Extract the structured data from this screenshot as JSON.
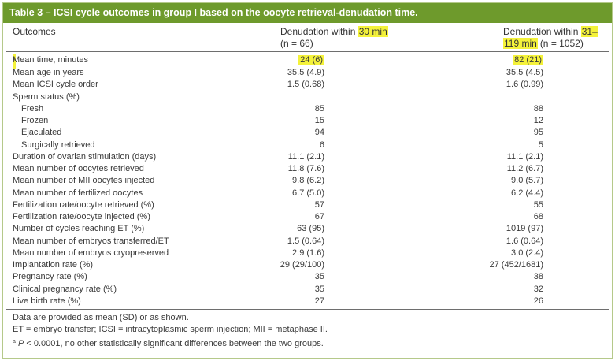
{
  "title": "Table 3 – ICSI cycle outcomes in group I based on the oocyte retrieval-denudation time.",
  "header": {
    "col0": "Outcomes",
    "col1_line1_prefix": "Denudation within ",
    "col1_line1_hl": "30 min",
    "col1_line2": "(n = 66)",
    "col2_line1_prefix": "Denudation within ",
    "col2_line1_hl": "31–",
    "col2_line2_hl": "119 min",
    "col2_line2_suffix": "(n = 1052)"
  },
  "highlight_row": {
    "label": "Mean time, minutes",
    "marker": "a",
    "c1": "24 (6)",
    "c2": "82 (21)"
  },
  "rows": [
    {
      "label": "Mean age in years",
      "c1": "35.5 (4.9)",
      "c2": "35.5 (4.5)"
    },
    {
      "label": "Mean ICSI cycle order",
      "c1": "1.5 (0.68)",
      "c2": "1.6 (0.99)"
    },
    {
      "label": "Sperm status (%)",
      "c1": "",
      "c2": ""
    },
    {
      "label": "Fresh",
      "c1": "85",
      "c2": "88"
    },
    {
      "label": "Frozen",
      "c1": "15",
      "c2": "12"
    },
    {
      "label": "Ejaculated",
      "c1": "94",
      "c2": "95"
    },
    {
      "label": "Surgically retrieved",
      "c1": "6",
      "c2": "5"
    },
    {
      "label": "Duration of ovarian stimulation (days)",
      "c1": "11.1 (2.1)",
      "c2": "11.1 (2.1)"
    },
    {
      "label": "Mean number of oocytes retrieved",
      "c1": "11.8 (7.6)",
      "c2": "11.2 (6.7)"
    },
    {
      "label": "Mean number of MII oocytes injected",
      "c1": "9.8 (6.2)",
      "c2": "9.0 (5.7)"
    },
    {
      "label": "Mean number of fertilized oocytes",
      "c1": "6.7 (5.0)",
      "c2": "6.2 (4.4)"
    },
    {
      "label": "Fertilization rate/oocyte retrieved (%)",
      "c1": "57",
      "c2": "55"
    },
    {
      "label": "Fertilization rate/oocyte injected (%)",
      "c1": "67",
      "c2": "68"
    },
    {
      "label": "Number of cycles reaching ET (%)",
      "c1": "63 (95)",
      "c2": "1019 (97)"
    },
    {
      "label": "Mean number of embryos transferred/ET",
      "c1": "1.5 (0.64)",
      "c2": "1.6 (0.64)"
    },
    {
      "label": "Mean number of embryos cryopreserved",
      "c1": "2.9 (1.6)",
      "c2": "3.0 (2.4)"
    },
    {
      "label": "Implantation rate (%)",
      "c1": "29 (29/100)",
      "c2": "27 (452/1681)"
    },
    {
      "label": "Pregnancy rate (%)",
      "c1": "35",
      "c2": "38"
    },
    {
      "label": "Clinical pregnancy rate (%)",
      "c1": "35",
      "c2": "32"
    },
    {
      "label": "Live birth rate (%)",
      "c1": "27",
      "c2": "26"
    }
  ],
  "notes": {
    "line1": "Data are provided as mean (SD) or as shown.",
    "line2": "ET = embryo transfer; ICSI = intracytoplasmic sperm injection; MII = metaphase II.",
    "line3_marker": "a",
    "line3_p": "P",
    "line3_rest": " < 0.0001, no other statistically significant differences between the two groups."
  },
  "colors": {
    "title_bg": "#6e9a2c",
    "highlight": "#f4f23a",
    "border": "#b5c98a"
  }
}
